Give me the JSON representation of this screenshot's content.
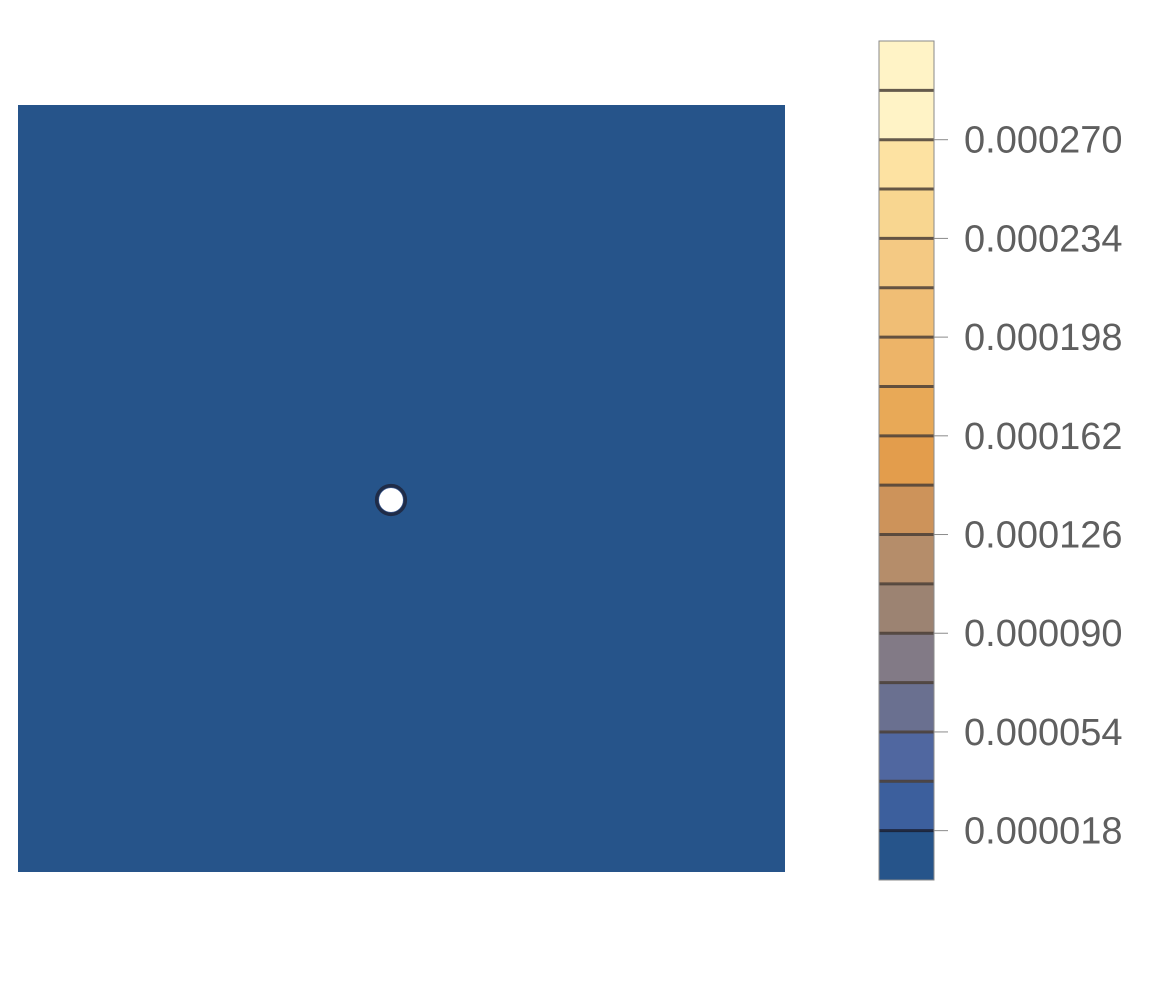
{
  "chart_data": {
    "type": "heatmap",
    "subtype": "contour",
    "title": "",
    "xlabel": "",
    "ylabel": "",
    "pattern": "concentric circular contours around a central singular point",
    "contour_levels": [
      1.8e-05,
      3.6e-05,
      5.4e-05,
      7.2e-05,
      9e-05,
      0.000108,
      0.000126,
      0.000144,
      0.000162,
      0.00018,
      0.000198,
      0.000216,
      0.000234,
      0.000252,
      0.00027,
      0.000288
    ],
    "colorbar": {
      "range": [
        0,
        0.000306
      ],
      "tick_values": [
        1.8e-05,
        5.4e-05,
        9e-05,
        0.000126,
        0.000162,
        0.000198,
        0.000234,
        0.00027
      ],
      "tick_labels": [
        "0.000018",
        "0.000054",
        "0.000090",
        "0.000126",
        "0.000162",
        "0.000198",
        "0.000234",
        "0.000270"
      ]
    },
    "band_colors": [
      "#26548a",
      "#3c5f9d",
      "#5067a0",
      "#6a7090",
      "#827a86",
      "#9c8372",
      "#b58d6a",
      "#cd935a",
      "#e39d4c",
      "#e8a957",
      "#edb468",
      "#f0be75",
      "#f4c983",
      "#f8d690",
      "#fde2a2",
      "#fff3c6"
    ],
    "grid": false,
    "frame": false
  }
}
